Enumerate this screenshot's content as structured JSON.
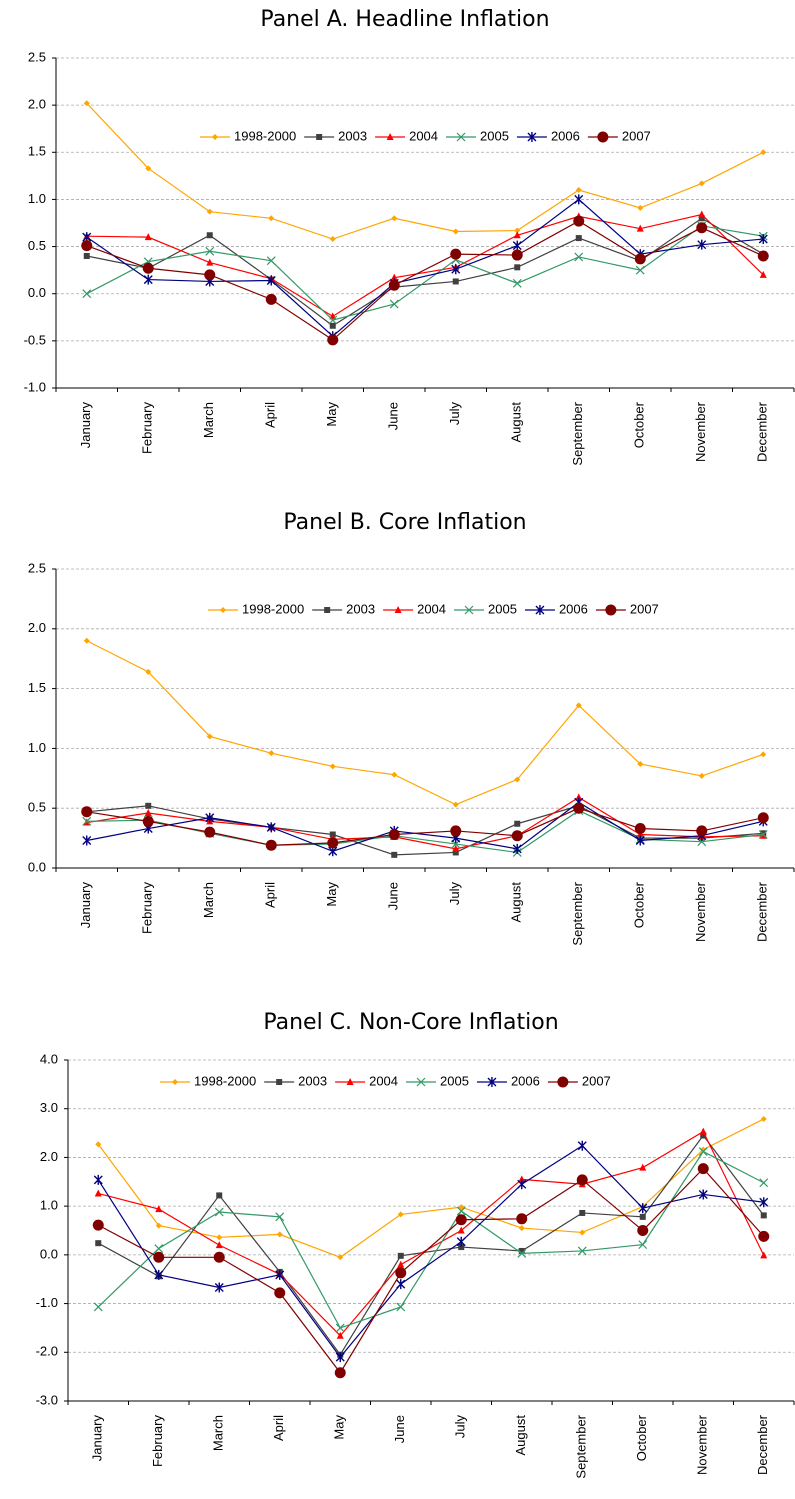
{
  "chart_data": [
    {
      "type": "line",
      "title": "Panel A. Headline Inflation",
      "categories": [
        "January",
        "February",
        "March",
        "April",
        "May",
        "June",
        "July",
        "August",
        "September",
        "October",
        "November",
        "December"
      ],
      "ylim": [
        -1,
        2.5
      ],
      "yticks": [
        {
          "value": -1,
          "label": "-1.0"
        },
        -0.5,
        {
          "value": 0,
          "label": "0.0"
        },
        0.5,
        {
          "value": 1,
          "label": "1.0"
        },
        1.5,
        {
          "value": 2,
          "label": "2.0"
        },
        2.5
      ],
      "grid": true,
      "series": [
        {
          "name": "1998-2000",
          "color": "#FFA500",
          "marker": "diamond",
          "values": [
            2.02,
            1.33,
            0.87,
            0.8,
            0.58,
            0.8,
            0.66,
            0.67,
            1.1,
            0.91,
            1.17,
            1.5
          ]
        },
        {
          "name": "2003",
          "color": "#404040",
          "marker": "square",
          "values": [
            0.4,
            0.27,
            0.62,
            0.15,
            -0.34,
            0.07,
            0.13,
            0.28,
            0.59,
            0.35,
            0.8,
            0.42
          ]
        },
        {
          "name": "2004",
          "color": "#FF0000",
          "marker": "triangle",
          "values": [
            0.61,
            0.6,
            0.33,
            0.16,
            -0.24,
            0.17,
            0.28,
            0.62,
            0.82,
            0.69,
            0.84,
            0.2
          ]
        },
        {
          "name": "2005",
          "color": "#339966",
          "marker": "x",
          "values": [
            0.0,
            0.34,
            0.45,
            0.35,
            -0.28,
            -0.11,
            0.36,
            0.11,
            0.39,
            0.25,
            0.72,
            0.61
          ]
        },
        {
          "name": "2006",
          "color": "#000080",
          "marker": "star",
          "values": [
            0.6,
            0.15,
            0.13,
            0.14,
            -0.45,
            0.11,
            0.26,
            0.51,
            1.0,
            0.42,
            0.52,
            0.58
          ]
        },
        {
          "name": "2007",
          "color": "#800000",
          "marker": "circle",
          "values": [
            0.51,
            0.27,
            0.2,
            -0.06,
            -0.49,
            0.09,
            0.42,
            0.41,
            0.77,
            0.37,
            0.7,
            0.4
          ]
        }
      ]
    },
    {
      "type": "line",
      "title": "Panel B. Core Inflation",
      "categories": [
        "January",
        "February",
        "March",
        "April",
        "May",
        "June",
        "July",
        "August",
        "September",
        "October",
        "November",
        "December"
      ],
      "ylim": [
        0,
        2.5
      ],
      "yticks": [
        {
          "value": 0,
          "label": "0.0"
        },
        0.5,
        {
          "value": 1,
          "label": "1.0"
        },
        1.5,
        {
          "value": 2,
          "label": "2.0"
        },
        2.5
      ],
      "grid": true,
      "series": [
        {
          "name": "1998-2000",
          "color": "#FFA500",
          "marker": "diamond",
          "values": [
            1.9,
            1.64,
            1.1,
            0.96,
            0.85,
            0.78,
            0.53,
            0.74,
            1.36,
            0.87,
            0.77,
            0.95
          ]
        },
        {
          "name": "2003",
          "color": "#404040",
          "marker": "square",
          "values": [
            0.47,
            0.52,
            0.41,
            0.34,
            0.28,
            0.11,
            0.13,
            0.37,
            0.52,
            0.25,
            0.25,
            0.29
          ]
        },
        {
          "name": "2004",
          "color": "#FF0000",
          "marker": "triangle",
          "values": [
            0.38,
            0.46,
            0.39,
            0.34,
            0.24,
            0.26,
            0.16,
            0.27,
            0.59,
            0.28,
            0.26,
            0.27
          ]
        },
        {
          "name": "2005",
          "color": "#339966",
          "marker": "x",
          "values": [
            0.39,
            0.4,
            0.29,
            0.19,
            0.2,
            0.27,
            0.2,
            0.13,
            0.48,
            0.24,
            0.22,
            0.28
          ]
        },
        {
          "name": "2006",
          "color": "#000080",
          "marker": "star",
          "values": [
            0.23,
            0.33,
            0.42,
            0.34,
            0.14,
            0.31,
            0.25,
            0.16,
            0.55,
            0.23,
            0.27,
            0.39
          ]
        },
        {
          "name": "2007",
          "color": "#800000",
          "marker": "circle",
          "values": [
            0.47,
            0.39,
            0.3,
            0.19,
            0.21,
            0.28,
            0.31,
            0.27,
            0.5,
            0.33,
            0.31,
            0.42
          ]
        }
      ]
    },
    {
      "type": "line",
      "title": "Panel C. Non-Core Inflation",
      "categories": [
        "January",
        "February",
        "March",
        "April",
        "May",
        "June",
        "July",
        "August",
        "September",
        "October",
        "November",
        "December"
      ],
      "ylim": [
        -3,
        4
      ],
      "yticks": [
        {
          "value": -3,
          "label": "-3.0"
        },
        {
          "value": -2,
          "label": "-2.0"
        },
        {
          "value": -1,
          "label": "-1.0"
        },
        {
          "value": 0,
          "label": "0.0"
        },
        {
          "value": 1,
          "label": "1.0"
        },
        {
          "value": 2,
          "label": "2.0"
        },
        {
          "value": 3,
          "label": "3.0"
        },
        {
          "value": 4,
          "label": "4.0"
        }
      ],
      "grid": true,
      "series": [
        {
          "name": "1998-2000",
          "color": "#FFA500",
          "marker": "diamond",
          "values": [
            2.27,
            0.6,
            0.36,
            0.42,
            -0.05,
            0.83,
            0.98,
            0.55,
            0.46,
            0.99,
            2.16,
            2.79
          ]
        },
        {
          "name": "2003",
          "color": "#404040",
          "marker": "square",
          "values": [
            0.24,
            -0.44,
            1.22,
            -0.35,
            -2.05,
            -0.02,
            0.16,
            0.08,
            0.86,
            0.78,
            2.45,
            0.81
          ]
        },
        {
          "name": "2004",
          "color": "#FF0000",
          "marker": "triangle",
          "values": [
            1.26,
            0.94,
            0.2,
            -0.4,
            -1.66,
            -0.2,
            0.5,
            1.55,
            1.45,
            1.79,
            2.53,
            -0.01
          ]
        },
        {
          "name": "2005",
          "color": "#339966",
          "marker": "x",
          "values": [
            -1.07,
            0.13,
            0.88,
            0.78,
            -1.5,
            -1.07,
            0.9,
            0.03,
            0.08,
            0.21,
            2.12,
            1.48
          ]
        },
        {
          "name": "2006",
          "color": "#000080",
          "marker": "star",
          "values": [
            1.54,
            -0.41,
            -0.67,
            -0.41,
            -2.1,
            -0.6,
            0.27,
            1.45,
            2.24,
            0.96,
            1.24,
            1.08
          ]
        },
        {
          "name": "2007",
          "color": "#800000",
          "marker": "circle",
          "values": [
            0.61,
            -0.05,
            -0.05,
            -0.78,
            -2.42,
            -0.37,
            0.72,
            0.74,
            1.54,
            0.5,
            1.77,
            0.38
          ]
        }
      ]
    }
  ]
}
